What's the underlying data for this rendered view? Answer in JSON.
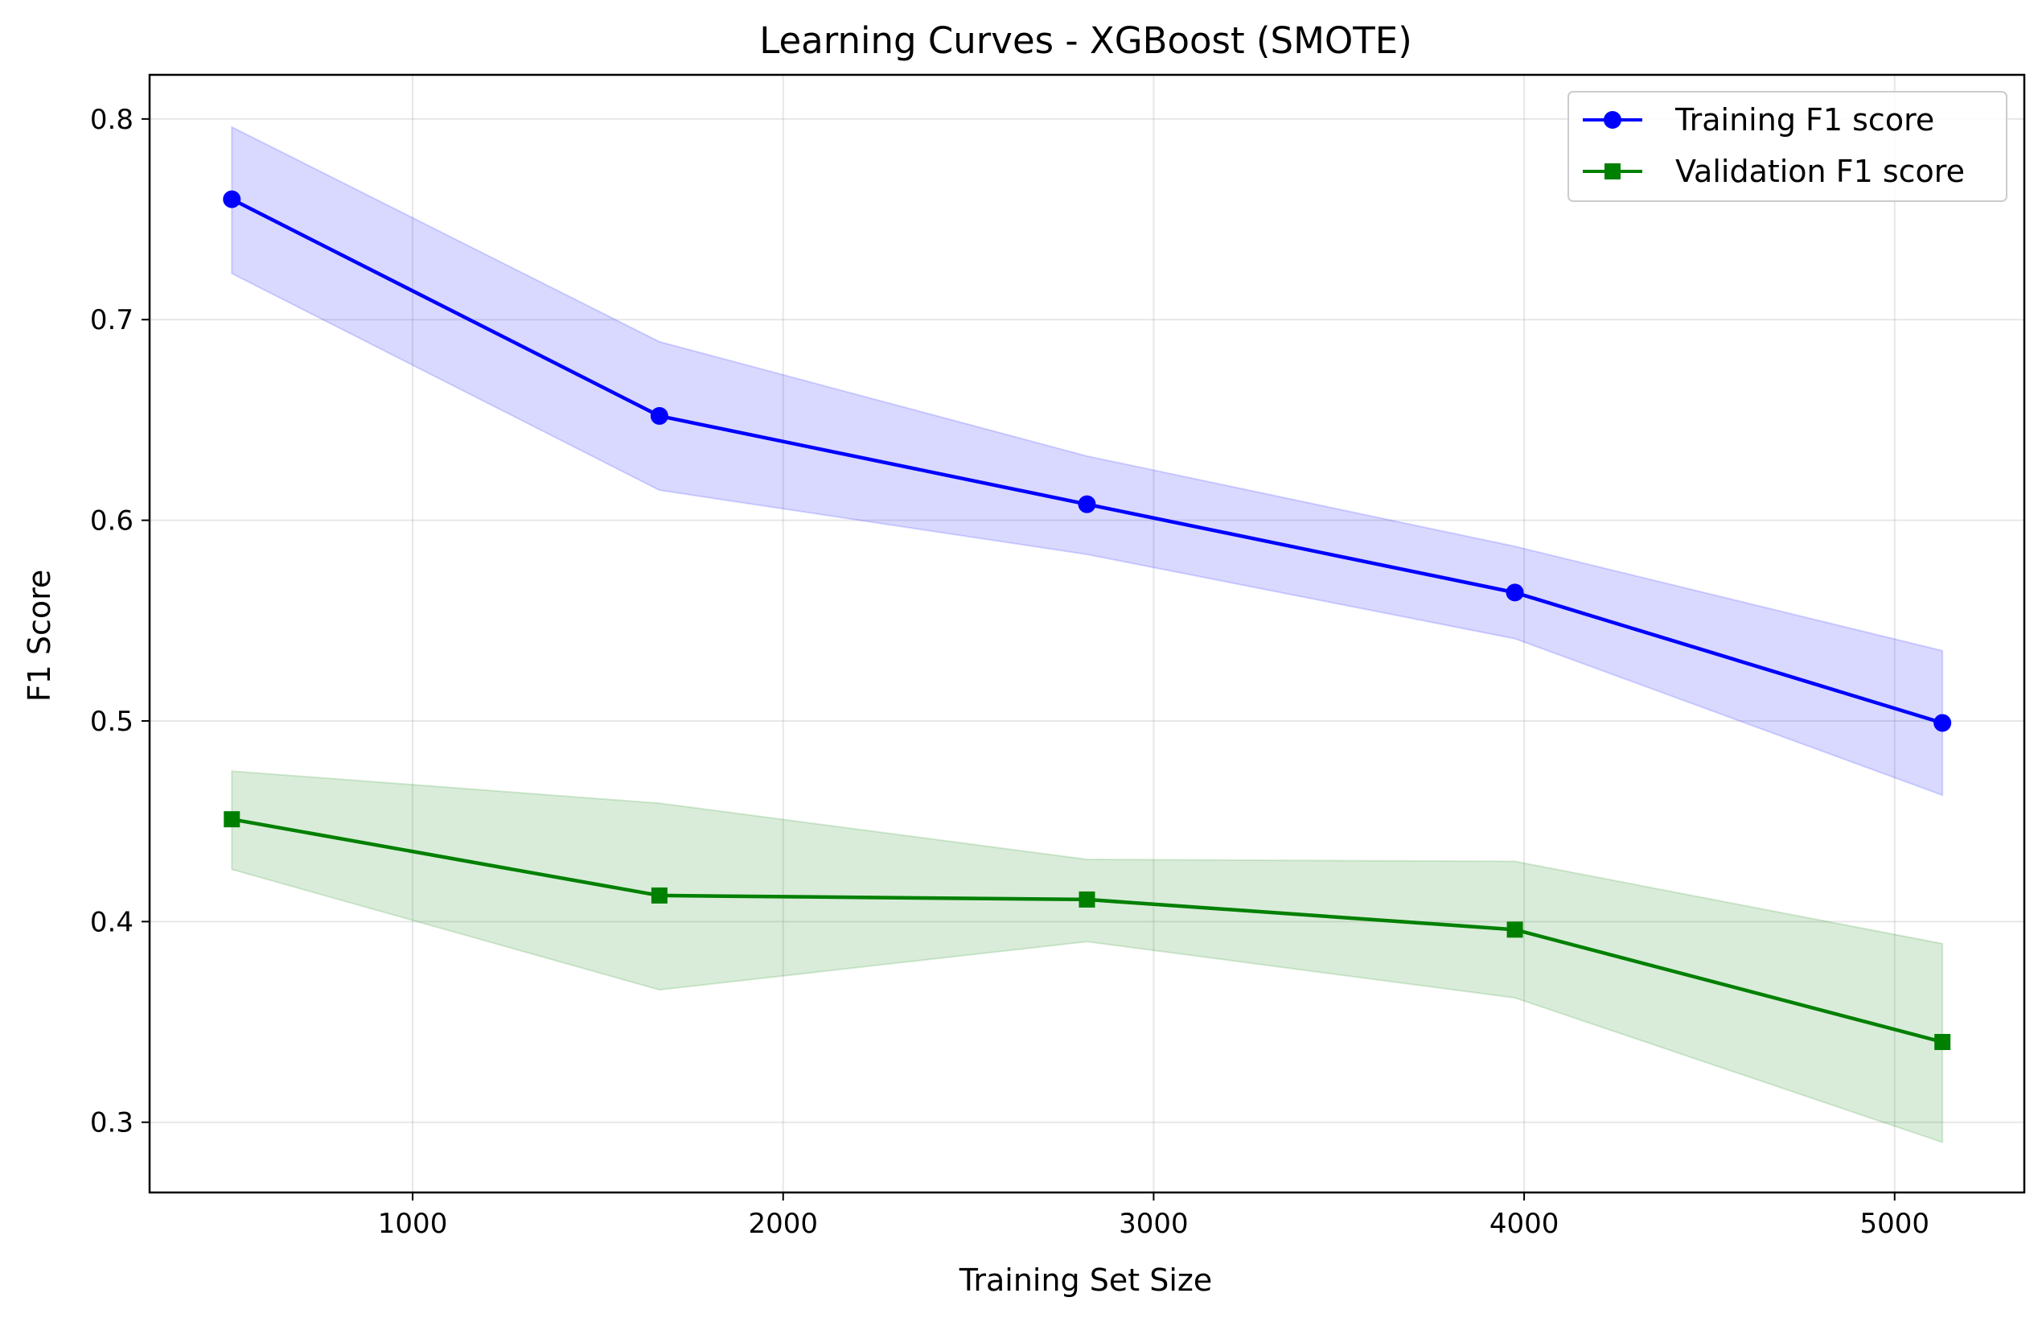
{
  "chart_data": {
    "type": "line",
    "title": "Learning Curves - XGBoost (SMOTE)",
    "xlabel": "Training Set Size",
    "ylabel": "F1 Score",
    "xlim": [
      290,
      5350
    ],
    "ylim": [
      0.265,
      0.822
    ],
    "xticks": [
      1000,
      2000,
      3000,
      4000,
      5000
    ],
    "yticks": [
      0.3,
      0.4,
      0.5,
      0.6,
      0.7,
      0.8
    ],
    "xtick_labels": [
      "1000",
      "2000",
      "3000",
      "4000",
      "5000"
    ],
    "ytick_labels": [
      "0.3",
      "0.4",
      "0.5",
      "0.6",
      "0.7",
      "0.8"
    ],
    "grid": true,
    "legend_position": "top-right",
    "x": [
      512,
      1666,
      2820,
      3975,
      5129
    ],
    "series": [
      {
        "name": "Training F1 score",
        "color": "#0000ff",
        "marker": "circle",
        "values": [
          0.76,
          0.652,
          0.608,
          0.564,
          0.499
        ],
        "band_upper": [
          0.796,
          0.689,
          0.632,
          0.587,
          0.535
        ],
        "band_lower": [
          0.723,
          0.615,
          0.583,
          0.541,
          0.463
        ]
      },
      {
        "name": "Validation F1 score",
        "color": "#008000",
        "marker": "square",
        "values": [
          0.451,
          0.413,
          0.411,
          0.396,
          0.34
        ],
        "band_upper": [
          0.475,
          0.459,
          0.431,
          0.43,
          0.389
        ],
        "band_lower": [
          0.426,
          0.366,
          0.39,
          0.362,
          0.29
        ]
      }
    ]
  }
}
